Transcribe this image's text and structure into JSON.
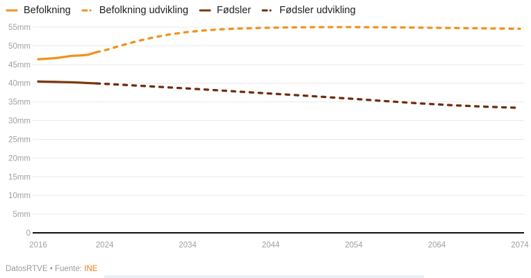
{
  "chart_data": {
    "type": "line",
    "title": "",
    "xlabel": "",
    "ylabel": "",
    "xlim": [
      2016,
      2074
    ],
    "ylim": [
      0,
      55
    ],
    "grid": "horizontal",
    "legend_position": "top-left",
    "x_ticks": [
      2016,
      2024,
      2034,
      2044,
      2054,
      2064,
      2074
    ],
    "y_ticks": [
      {
        "value": 0,
        "label": "0"
      },
      {
        "value": 5,
        "label": "5mm"
      },
      {
        "value": 10,
        "label": "10mm"
      },
      {
        "value": 15,
        "label": "15mm"
      },
      {
        "value": 20,
        "label": "20mm"
      },
      {
        "value": 25,
        "label": "25mm"
      },
      {
        "value": 30,
        "label": "30mm"
      },
      {
        "value": 35,
        "label": "35mm"
      },
      {
        "value": 40,
        "label": "40mm"
      },
      {
        "value": 45,
        "label": "45mm"
      },
      {
        "value": 50,
        "label": "50mm"
      },
      {
        "value": 55,
        "label": "55mm"
      }
    ],
    "series": [
      {
        "name": "Befolkning",
        "style": "solid",
        "color": "#F0931D",
        "points": [
          [
            2016,
            46.4
          ],
          [
            2017,
            46.55
          ],
          [
            2018,
            46.7
          ],
          [
            2019,
            47.0
          ],
          [
            2020,
            47.3
          ],
          [
            2021,
            47.4
          ],
          [
            2022,
            47.6
          ],
          [
            2023,
            48.3
          ]
        ]
      },
      {
        "name": "Befolkning udvikling",
        "style": "dashed",
        "color": "#F0931D",
        "points": [
          [
            2023,
            48.3
          ],
          [
            2024,
            48.8
          ],
          [
            2026,
            50.1
          ],
          [
            2028,
            51.3
          ],
          [
            2030,
            52.3
          ],
          [
            2032,
            53.1
          ],
          [
            2034,
            53.7
          ],
          [
            2036,
            54.1
          ],
          [
            2038,
            54.4
          ],
          [
            2040,
            54.6
          ],
          [
            2043,
            54.8
          ],
          [
            2046,
            54.9
          ],
          [
            2050,
            55.0
          ],
          [
            2054,
            55.0
          ],
          [
            2058,
            54.95
          ],
          [
            2062,
            54.85
          ],
          [
            2066,
            54.75
          ],
          [
            2070,
            54.65
          ],
          [
            2074,
            54.55
          ]
        ]
      },
      {
        "name": "Fødsler",
        "style": "solid",
        "color": "#7A3A12",
        "points": [
          [
            2016,
            40.45
          ],
          [
            2017,
            40.4
          ],
          [
            2018,
            40.35
          ],
          [
            2019,
            40.3
          ],
          [
            2020,
            40.25
          ],
          [
            2021,
            40.15
          ],
          [
            2022,
            40.05
          ],
          [
            2023,
            39.95
          ]
        ]
      },
      {
        "name": "Fødsler udvikling",
        "style": "dashed",
        "color": "#6F2D10",
        "points": [
          [
            2023,
            39.95
          ],
          [
            2026,
            39.6
          ],
          [
            2030,
            39.1
          ],
          [
            2034,
            38.6
          ],
          [
            2038,
            38.05
          ],
          [
            2042,
            37.5
          ],
          [
            2046,
            36.95
          ],
          [
            2050,
            36.4
          ],
          [
            2054,
            35.8
          ],
          [
            2058,
            35.2
          ],
          [
            2062,
            34.6
          ],
          [
            2066,
            34.1
          ],
          [
            2070,
            33.7
          ],
          [
            2074,
            33.4
          ]
        ]
      }
    ],
    "axis_color": "#111111",
    "gridline_color": "#e9e9e9",
    "tick_label_color": "#a0a0a0"
  },
  "footer": {
    "credit": "DatosRTVE",
    "separator": "•",
    "source_label": "Fuente:",
    "source": "INE"
  }
}
